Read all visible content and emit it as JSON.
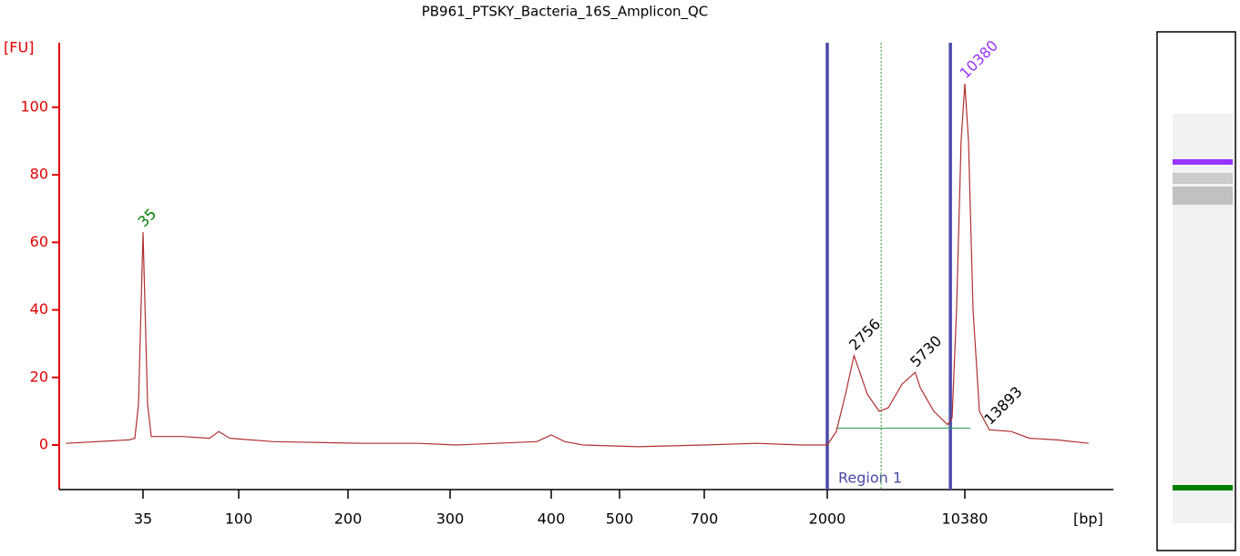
{
  "chart_data": {
    "type": "line",
    "title": "PB961_PTSKY_Bacteria_16S_Amplicon_QC",
    "y_label": "[FU]",
    "x_label": "[bp]",
    "ylim": [
      -13.2,
      119.1
    ],
    "yticks": [
      0,
      20,
      40,
      60,
      80,
      100
    ],
    "xticks": [
      35,
      100,
      200,
      300,
      400,
      500,
      700,
      2000,
      10380
    ],
    "axis_color": "#e00000",
    "series": [
      {
        "color": "#b03030",
        "x": [
          15,
          30,
          32,
          33.3,
          35,
          36.8,
          38.3,
          53.8,
          72.6,
          80.3,
          90.6,
          124.5,
          213,
          265,
          305,
          384,
          400,
          418,
          444,
          538,
          700,
          1091,
          1607,
          2000,
          2229,
          2488,
          2756,
          3230,
          3720,
          4150,
          4890,
          5730,
          6080,
          7160,
          8440,
          8910,
          9400,
          9930,
          10380,
          10840,
          11450,
          12360,
          13770,
          13893,
          18100,
          22500,
          31200,
          45700
        ],
        "values": [
          0.5,
          1.5,
          2,
          12,
          63,
          12,
          2.5,
          2.5,
          2,
          4,
          2,
          1,
          0.5,
          0.5,
          0,
          1,
          3,
          1,
          0,
          -0.5,
          0,
          0.5,
          0,
          0,
          4,
          15,
          26.5,
          15,
          10,
          11,
          18,
          21.5,
          17,
          10,
          6,
          8,
          40,
          90,
          107,
          90,
          40,
          10,
          5,
          4.5,
          4,
          2,
          1.5,
          0.5
        ]
      }
    ],
    "peaks": [
      {
        "x": 35,
        "y": 63,
        "color": "#008000"
      },
      {
        "x": 2756,
        "y": 26.5,
        "color": "#000000"
      },
      {
        "x": 5730,
        "y": 21.5,
        "color": "#000000"
      },
      {
        "x": 10380,
        "y": 107,
        "color": "#9933ff"
      },
      {
        "x": 13893,
        "y": 4.5,
        "color": "#000000"
      }
    ],
    "region": {
      "label": "Region 1",
      "from": 2000,
      "to": 8730,
      "color": "#4a4aa8"
    },
    "region_baseline": 5,
    "region_marker": 3810
  }
}
